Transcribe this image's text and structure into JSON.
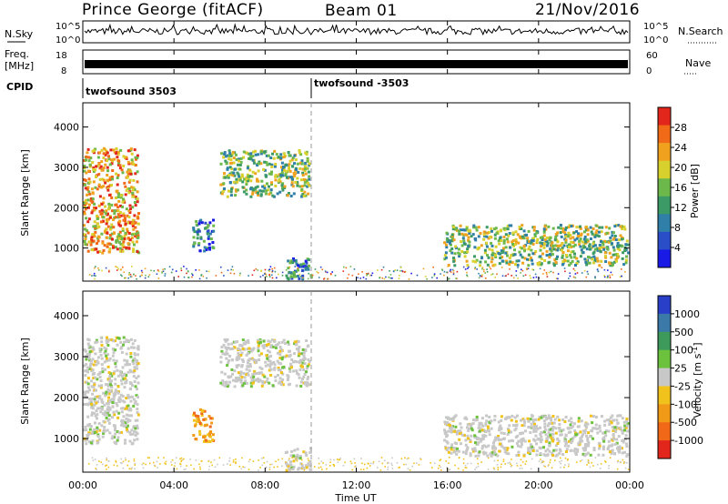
{
  "header": {
    "station": "Prince George (fitACF)",
    "beam": "Beam 01",
    "date": "21/Nov/2016"
  },
  "strips": {
    "nsky": {
      "label": "N.Sky",
      "ticks_left": [
        "10^5",
        "10^0"
      ],
      "ticks_right": [
        "10^5",
        "10^0"
      ],
      "right_label": "N.Search"
    },
    "freq": {
      "label_line1": "Freq.",
      "label_line2": "[MHz]",
      "ticks_left": [
        "18",
        "8"
      ],
      "ticks_right": [
        "60",
        "0"
      ],
      "right_label": "Nave"
    },
    "cpid": {
      "label": "CPID",
      "segments": [
        {
          "name": "twofsound 3503",
          "start_hour": 0
        },
        {
          "name": "twofsound -3503",
          "start_hour": 10
        }
      ]
    }
  },
  "time_axis": {
    "label": "Time UT",
    "ticks": [
      "00:00",
      "04:00",
      "08:00",
      "12:00",
      "16:00",
      "20:00",
      "00:00"
    ],
    "range_hours": [
      0,
      24
    ]
  },
  "chart_data": [
    {
      "type": "heatmap",
      "quantity": "power",
      "ylabel": "Slant Range [km]",
      "xlabel": "",
      "xlim_hours": [
        0,
        24
      ],
      "ylim_km": [
        180,
        4600
      ],
      "yticks": [
        1000,
        2000,
        3000,
        4000
      ],
      "colorbar": {
        "label": "Power [dB]",
        "ticks": [
          "4",
          "8",
          "12",
          "16",
          "20",
          "24",
          "28"
        ],
        "range": [
          0,
          32
        ],
        "colors": [
          "#1a1ae6",
          "#2a4ec8",
          "#2f7fa8",
          "#3b9a66",
          "#6cb84a",
          "#d8d02c",
          "#f0a21f",
          "#f06a18",
          "#e3261c"
        ]
      },
      "regions": [
        {
          "t": [
            0.0,
            2.4
          ],
          "r": [
            900,
            3500
          ],
          "level": "high"
        },
        {
          "t": [
            6.0,
            9.9
          ],
          "r": [
            2300,
            3450
          ],
          "level": "mid"
        },
        {
          "t": [
            4.8,
            5.7
          ],
          "r": [
            950,
            1750
          ],
          "level": "low"
        },
        {
          "t": [
            15.8,
            23.9
          ],
          "r": [
            600,
            1600
          ],
          "level": "mid"
        },
        {
          "t": [
            8.8,
            10.0
          ],
          "r": [
            250,
            800
          ],
          "level": "low"
        }
      ]
    },
    {
      "type": "heatmap",
      "quantity": "velocity",
      "ylabel": "Slant Range [km]",
      "xlabel": "Time UT",
      "xlim_hours": [
        0,
        24
      ],
      "ylim_km": [
        180,
        4600
      ],
      "yticks": [
        1000,
        2000,
        3000,
        4000
      ],
      "colorbar": {
        "label": "Velocity [m s^-1]",
        "ticks": [
          "1000",
          "500",
          "100",
          "25",
          "-25",
          "-100",
          "-500",
          "-1000"
        ],
        "colors": [
          "#2a3fc8",
          "#3a79a8",
          "#3d9a5a",
          "#6cc23c",
          "#c8c8c8",
          "#f2c21c",
          "#f09a18",
          "#f06818",
          "#e3261c"
        ]
      },
      "regions": [
        {
          "t": [
            0.0,
            2.4
          ],
          "r": [
            900,
            3500
          ],
          "level": "ground"
        },
        {
          "t": [
            6.0,
            9.9
          ],
          "r": [
            2300,
            3450
          ],
          "level": "ground"
        },
        {
          "t": [
            4.8,
            5.7
          ],
          "r": [
            950,
            1750
          ],
          "level": "neg"
        },
        {
          "t": [
            15.8,
            23.9
          ],
          "r": [
            600,
            1600
          ],
          "level": "ground"
        },
        {
          "t": [
            8.8,
            10.0
          ],
          "r": [
            250,
            800
          ],
          "level": "ground"
        }
      ]
    }
  ]
}
